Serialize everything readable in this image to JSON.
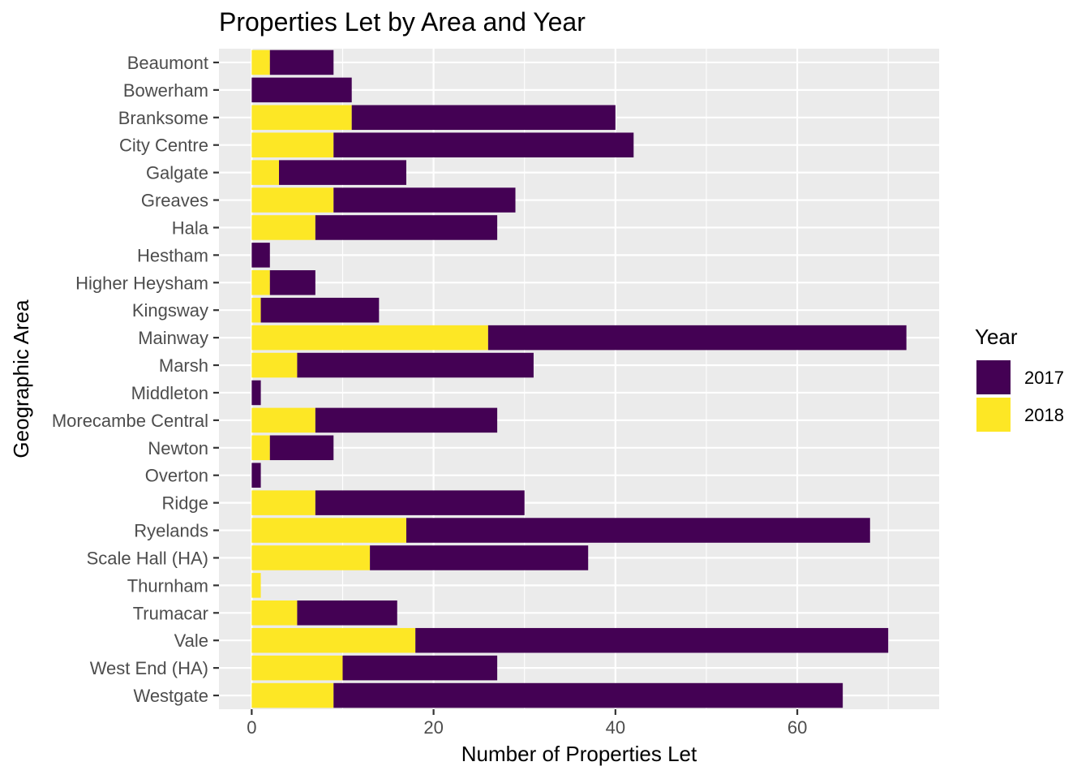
{
  "chart_data": {
    "type": "bar",
    "orientation": "horizontal",
    "stacked": true,
    "title": "Properties Let by Area and Year",
    "xlabel": "Number of Properties Let",
    "ylabel": "Geographic Area",
    "xlim": [
      -3.6,
      75.6
    ],
    "xticks": [
      0,
      20,
      40,
      60
    ],
    "grid": true,
    "legend_position": "right",
    "legend_title": "Year",
    "categories": [
      "Beaumont",
      "Bowerham",
      "Branksome",
      "City Centre",
      "Galgate",
      "Greaves",
      "Hala",
      "Hestham",
      "Higher Heysham",
      "Kingsway",
      "Mainway",
      "Marsh",
      "Middleton",
      "Morecambe Central",
      "Newton",
      "Overton",
      "Ridge",
      "Ryelands",
      "Scale Hall (HA)",
      "Thurnham",
      "Trumacar",
      "Vale",
      "West End (HA)",
      "Westgate"
    ],
    "series": [
      {
        "name": "2018",
        "color": "#FDE725",
        "values": [
          2,
          0,
          11,
          9,
          3,
          9,
          7,
          0,
          2,
          1,
          26,
          5,
          0,
          7,
          2,
          0,
          7,
          17,
          13,
          1,
          5,
          18,
          10,
          9
        ]
      },
      {
        "name": "2017",
        "color": "#440154",
        "values": [
          7,
          11,
          29,
          33,
          14,
          20,
          20,
          2,
          5,
          13,
          46,
          26,
          1,
          20,
          7,
          1,
          23,
          51,
          24,
          0,
          11,
          52,
          17,
          56
        ]
      }
    ],
    "legend_order": [
      "2017",
      "2018"
    ]
  }
}
